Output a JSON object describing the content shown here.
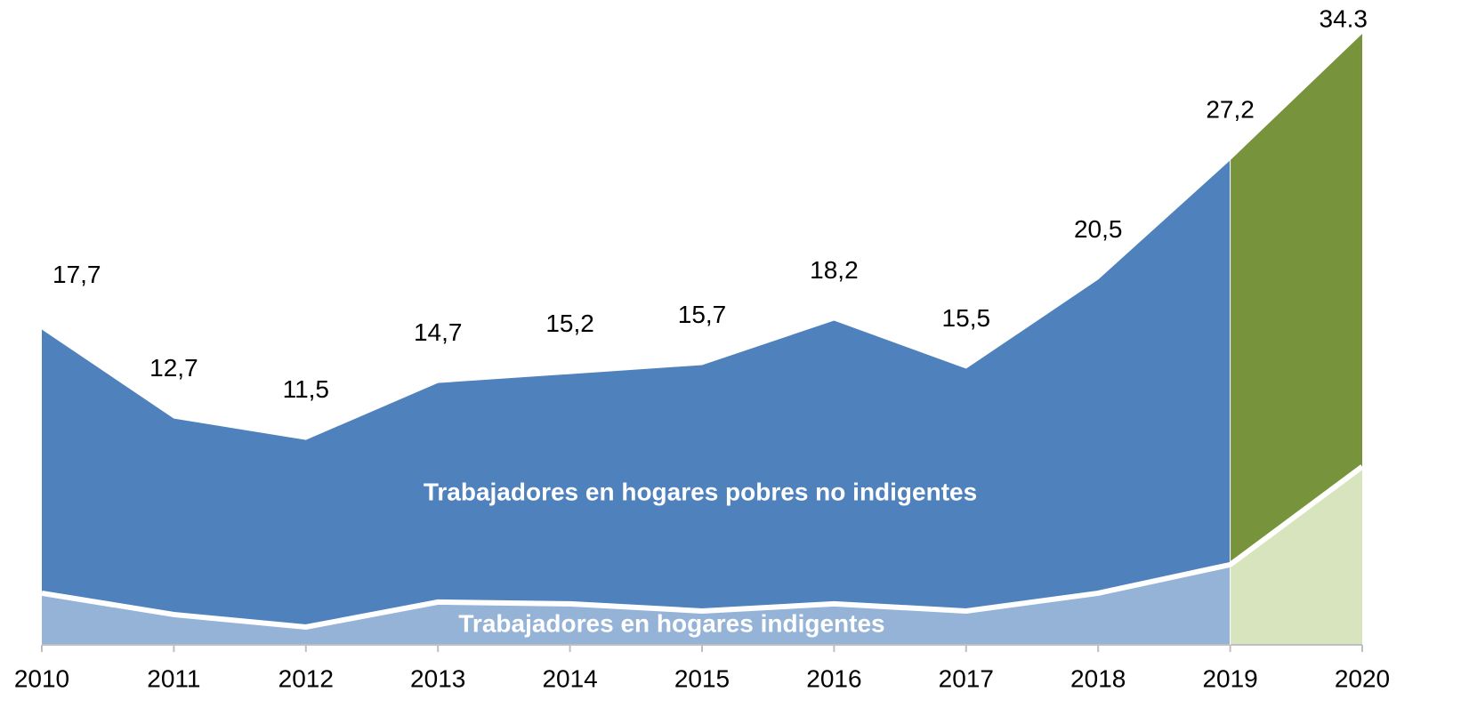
{
  "chart_data": {
    "type": "stacked_area",
    "categories": [
      "2010",
      "2011",
      "2012",
      "2013",
      "2014",
      "2015",
      "2016",
      "2017",
      "2018",
      "2019",
      "2020"
    ],
    "series": [
      {
        "name": "Trabajadores en hogares indigentes",
        "color": "#95b3d7",
        "projection_color": "#d7e4bd",
        "values": [
          2.9,
          1.7,
          1.0,
          2.4,
          2.3,
          1.9,
          2.3,
          1.9,
          2.9,
          4.5,
          10.0
        ]
      },
      {
        "name": "Trabajadores en hogares pobres no indigentes",
        "color": "#4f81bd",
        "projection_color": "#77933c",
        "values": [
          14.8,
          11.0,
          10.5,
          12.3,
          12.9,
          13.8,
          15.9,
          13.6,
          17.6,
          22.7,
          24.3
        ]
      }
    ],
    "projection_from": "2019",
    "totals": {
      "values": [
        17.7,
        12.7,
        11.5,
        14.7,
        15.2,
        15.7,
        18.2,
        15.5,
        20.5,
        27.2,
        34.3
      ],
      "value_labels": [
        "17,7",
        "12,7",
        "11,5",
        "14,7",
        "15,2",
        "15,7",
        "18,2",
        "15,5",
        "20,5",
        "27,2",
        "34.3"
      ]
    },
    "ylim": [
      0,
      35
    ]
  }
}
